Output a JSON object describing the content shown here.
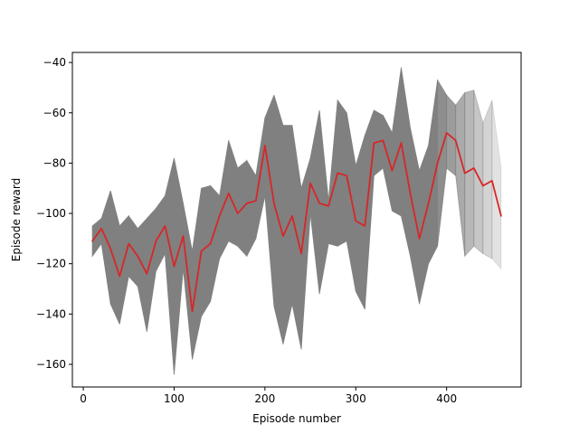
{
  "chart_data": {
    "type": "line",
    "xlabel": "Episode number",
    "ylabel": "Episode reward",
    "xlim": [
      -12,
      482
    ],
    "ylim": [
      -169,
      -36
    ],
    "xticks": [
      0,
      100,
      200,
      300,
      400
    ],
    "yticks": [
      -160,
      -140,
      -120,
      -100,
      -80,
      -60,
      -40
    ],
    "grid": false,
    "colors": {
      "line": "#d62728",
      "band": "#808080",
      "axes": "#000000"
    },
    "series": [
      {
        "x": [
          10,
          20,
          30,
          40,
          50,
          60,
          70,
          80,
          90,
          100,
          110,
          120,
          130,
          140,
          150,
          160,
          170,
          180,
          190,
          200,
          210,
          220,
          230,
          240,
          250,
          260,
          270,
          280,
          290,
          300,
          310,
          320,
          330,
          340,
          350,
          360,
          370,
          380,
          390,
          400,
          410,
          420,
          430,
          440,
          450,
          460
        ],
        "values": [
          -111,
          -106,
          -114,
          -125,
          -112,
          -117,
          -124,
          -111,
          -105,
          -121,
          -109,
          -139,
          -115,
          -112,
          -101,
          -92,
          -100,
          -96,
          -95,
          -73,
          -96,
          -109,
          -101,
          -116,
          -88,
          -96,
          -97,
          -84,
          -85,
          -103,
          -105,
          -72,
          -71,
          -83,
          -72,
          -92,
          -110,
          -96,
          -80,
          -68,
          -71,
          -84,
          -82,
          -89,
          -87,
          -101
        ],
        "upper": [
          -105,
          -102,
          -91,
          -105,
          -101,
          -106,
          -102,
          -98,
          -93,
          -78,
          -96,
          -115,
          -90,
          -89,
          -93,
          -71,
          -82,
          -79,
          -85,
          -62,
          -53,
          -65,
          -65,
          -90,
          -78,
          -59,
          -95,
          -55,
          -60,
          -81,
          -69,
          -59,
          -61,
          -68,
          -42,
          -66,
          -83,
          -73,
          -47,
          -53,
          -57,
          -52,
          -51,
          -64,
          -55,
          -82
        ],
        "lower": [
          -117,
          -112,
          -136,
          -144,
          -125,
          -129,
          -147,
          -123,
          -116,
          -164,
          -122,
          -158,
          -141,
          -135,
          -118,
          -111,
          -113,
          -117,
          -110,
          -93,
          -137,
          -152,
          -136,
          -154,
          -100,
          -132,
          -112,
          -113,
          -111,
          -131,
          -138,
          -85,
          -82,
          -99,
          -101,
          -117,
          -136,
          -120,
          -113,
          -82,
          -85,
          -117,
          -113,
          -116,
          -118,
          -122
        ]
      }
    ]
  }
}
